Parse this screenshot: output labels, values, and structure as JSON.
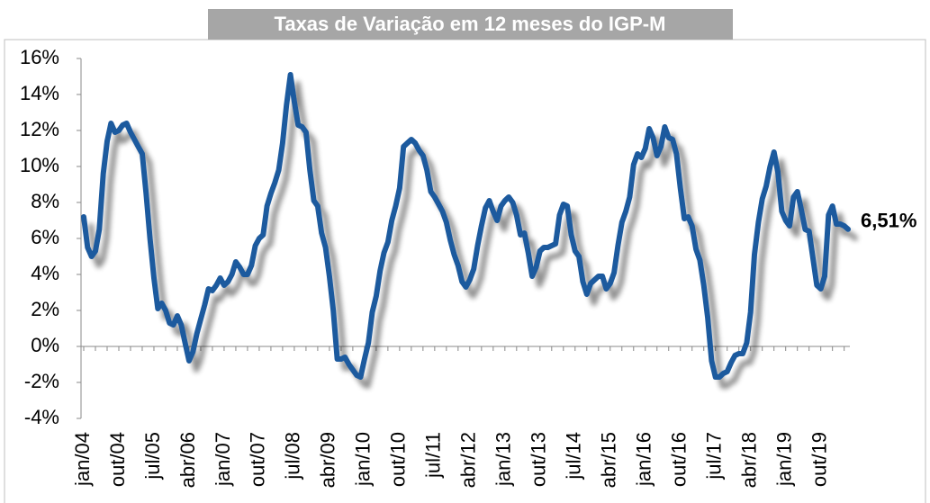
{
  "chart_data": {
    "type": "line",
    "title": "Taxas de Variação em 12 meses do IGP-M",
    "categories": [
      "jan/04",
      null,
      null,
      null,
      null,
      null,
      null,
      null,
      null,
      "out/04",
      null,
      null,
      null,
      null,
      null,
      null,
      null,
      null,
      "jul/05",
      null,
      null,
      null,
      null,
      null,
      null,
      null,
      null,
      "abr/06",
      null,
      null,
      null,
      null,
      null,
      null,
      null,
      null,
      "jan/07",
      null,
      null,
      null,
      null,
      null,
      null,
      null,
      null,
      "out/07",
      null,
      null,
      null,
      null,
      null,
      null,
      null,
      null,
      "jul/08",
      null,
      null,
      null,
      null,
      null,
      null,
      null,
      null,
      "abr/09",
      null,
      null,
      null,
      null,
      null,
      null,
      null,
      null,
      "jan/10",
      null,
      null,
      null,
      null,
      null,
      null,
      null,
      null,
      "out/10",
      null,
      null,
      null,
      null,
      null,
      null,
      null,
      null,
      "jul/11",
      null,
      null,
      null,
      null,
      null,
      null,
      null,
      null,
      "abr/12",
      null,
      null,
      null,
      null,
      null,
      null,
      null,
      null,
      "jan/13",
      null,
      null,
      null,
      null,
      null,
      null,
      null,
      null,
      "out/13",
      null,
      null,
      null,
      null,
      null,
      null,
      null,
      null,
      "jul/14",
      null,
      null,
      null,
      null,
      null,
      null,
      null,
      null,
      "abr/15",
      null,
      null,
      null,
      null,
      null,
      null,
      null,
      null,
      "jan/16",
      null,
      null,
      null,
      null,
      null,
      null,
      null,
      null,
      "out/16",
      null,
      null,
      null,
      null,
      null,
      null,
      null,
      null,
      "jul/17",
      null,
      null,
      null,
      null,
      null,
      null,
      null,
      null,
      "abr/18",
      null,
      null,
      null,
      null,
      null,
      null,
      null,
      null,
      "jan/19",
      null,
      null,
      null,
      null,
      null,
      null,
      null,
      null,
      "out/19",
      null,
      null,
      null,
      null,
      null,
      null,
      null
    ],
    "values": [
      7.2,
      5.5,
      5.0,
      5.3,
      6.5,
      9.6,
      11.4,
      12.4,
      11.9,
      12.0,
      12.3,
      12.4,
      11.9,
      11.5,
      11.1,
      10.7,
      8.5,
      6.0,
      3.8,
      2.1,
      2.4,
      2.0,
      1.3,
      1.2,
      1.7,
      1.2,
      0.2,
      -0.8,
      -0.3,
      0.7,
      1.5,
      2.3,
      3.2,
      3.1,
      3.4,
      3.8,
      3.4,
      3.6,
      4.0,
      4.7,
      4.4,
      4.0,
      4.0,
      4.5,
      5.6,
      6.0,
      6.2,
      7.8,
      8.5,
      9.1,
      9.8,
      11.3,
      13.4,
      15.1,
      13.6,
      12.3,
      12.2,
      11.9,
      9.8,
      8.1,
      7.8,
      6.3,
      5.5,
      3.9,
      2.0,
      -0.7,
      -0.7,
      -0.6,
      -1.0,
      -1.3,
      -1.6,
      -1.7,
      -0.7,
      0.2,
      1.9,
      2.8,
      4.2,
      5.2,
      5.8,
      7.0,
      7.8,
      8.8,
      11.1,
      11.3,
      11.5,
      11.3,
      10.9,
      10.6,
      9.8,
      8.6,
      8.3,
      7.9,
      7.5,
      6.9,
      5.9,
      5.1,
      4.5,
      3.6,
      3.3,
      3.7,
      4.3,
      5.6,
      6.7,
      7.7,
      8.1,
      7.5,
      7.0,
      7.8,
      8.1,
      8.3,
      8.0,
      7.3,
      6.2,
      6.3,
      5.2,
      3.9,
      4.4,
      5.3,
      5.5,
      5.5,
      5.6,
      5.7,
      7.3,
      7.9,
      7.8,
      6.2,
      5.3,
      5.0,
      3.6,
      2.9,
      3.5,
      3.7,
      3.9,
      3.9,
      3.2,
      3.5,
      4.1,
      5.6,
      6.9,
      7.5,
      8.3,
      10.1,
      10.7,
      10.5,
      11.0,
      12.1,
      11.6,
      10.6,
      11.1,
      12.2,
      11.6,
      11.5,
      10.7,
      8.8,
      7.1,
      7.2,
      6.7,
      5.4,
      4.8,
      3.4,
      1.6,
      -0.8,
      -1.7,
      -1.7,
      -1.5,
      -1.4,
      -0.9,
      -0.5,
      -0.4,
      -0.4,
      0.2,
      1.9,
      5.1,
      6.9,
      8.2,
      8.9,
      10.0,
      10.8,
      9.7,
      7.5,
      7.0,
      6.7,
      8.3,
      8.6,
      7.6,
      6.5,
      6.4,
      4.9,
      3.4,
      3.2,
      3.9,
      7.3,
      7.8,
      6.8,
      6.8,
      6.7,
      6.51
    ],
    "value_labels": [
      null,
      null,
      null,
      null,
      null,
      null,
      null,
      null,
      null,
      null,
      null,
      null,
      null,
      null,
      null,
      null,
      null,
      null,
      null,
      null,
      null,
      null,
      null,
      null,
      null,
      null,
      null,
      null,
      null,
      null,
      null,
      null,
      null,
      null,
      null,
      null,
      null,
      null,
      null,
      null,
      null,
      null,
      null,
      null,
      null,
      null,
      null,
      null,
      null,
      null,
      null,
      null,
      null,
      null,
      null,
      null,
      null,
      null,
      null,
      null,
      null,
      null,
      null,
      null,
      null,
      null,
      null,
      null,
      null,
      null,
      null,
      null,
      null,
      null,
      null,
      null,
      null,
      null,
      null,
      null,
      null,
      null,
      null,
      null,
      null,
      null,
      null,
      null,
      null,
      null,
      null,
      null,
      null,
      null,
      null,
      null,
      null,
      null,
      null,
      null,
      null,
      null,
      null,
      null,
      null,
      null,
      null,
      null,
      null,
      null,
      null,
      null,
      null,
      null,
      null,
      null,
      null,
      null,
      null,
      null,
      null,
      null,
      null,
      null,
      null,
      null,
      null,
      null,
      null,
      null,
      null,
      null,
      null,
      null,
      null,
      null,
      null,
      null,
      null,
      null,
      null,
      null,
      null,
      null,
      null,
      null,
      null,
      null,
      null,
      null,
      null,
      null,
      null,
      null,
      null,
      null,
      null,
      null,
      null,
      null,
      null,
      null,
      null,
      null,
      null,
      null,
      null,
      null,
      null,
      null,
      null,
      null,
      null,
      null,
      null,
      null,
      null,
      null,
      null,
      null,
      null,
      null,
      null,
      null,
      null,
      null,
      null,
      null,
      null,
      null,
      null,
      null,
      null,
      null,
      null,
      null,
      "6,51%"
    ],
    "color": "#1f5a9e",
    "ylim": [
      -4,
      16
    ],
    "yticks": [
      {
        "value": -4,
        "label": "-4%"
      },
      {
        "value": -2,
        "label": "-2%"
      },
      {
        "value": 0,
        "label": "0%"
      },
      {
        "value": 2,
        "label": "2%"
      },
      {
        "value": 4,
        "label": "4%"
      },
      {
        "value": 6,
        "label": "6%"
      },
      {
        "value": 8,
        "label": "8%"
      },
      {
        "value": 10,
        "label": "10%"
      },
      {
        "value": 12,
        "label": "12%"
      },
      {
        "value": 14,
        "label": "14%"
      },
      {
        "value": 16,
        "label": "16%"
      }
    ],
    "grid": false
  }
}
